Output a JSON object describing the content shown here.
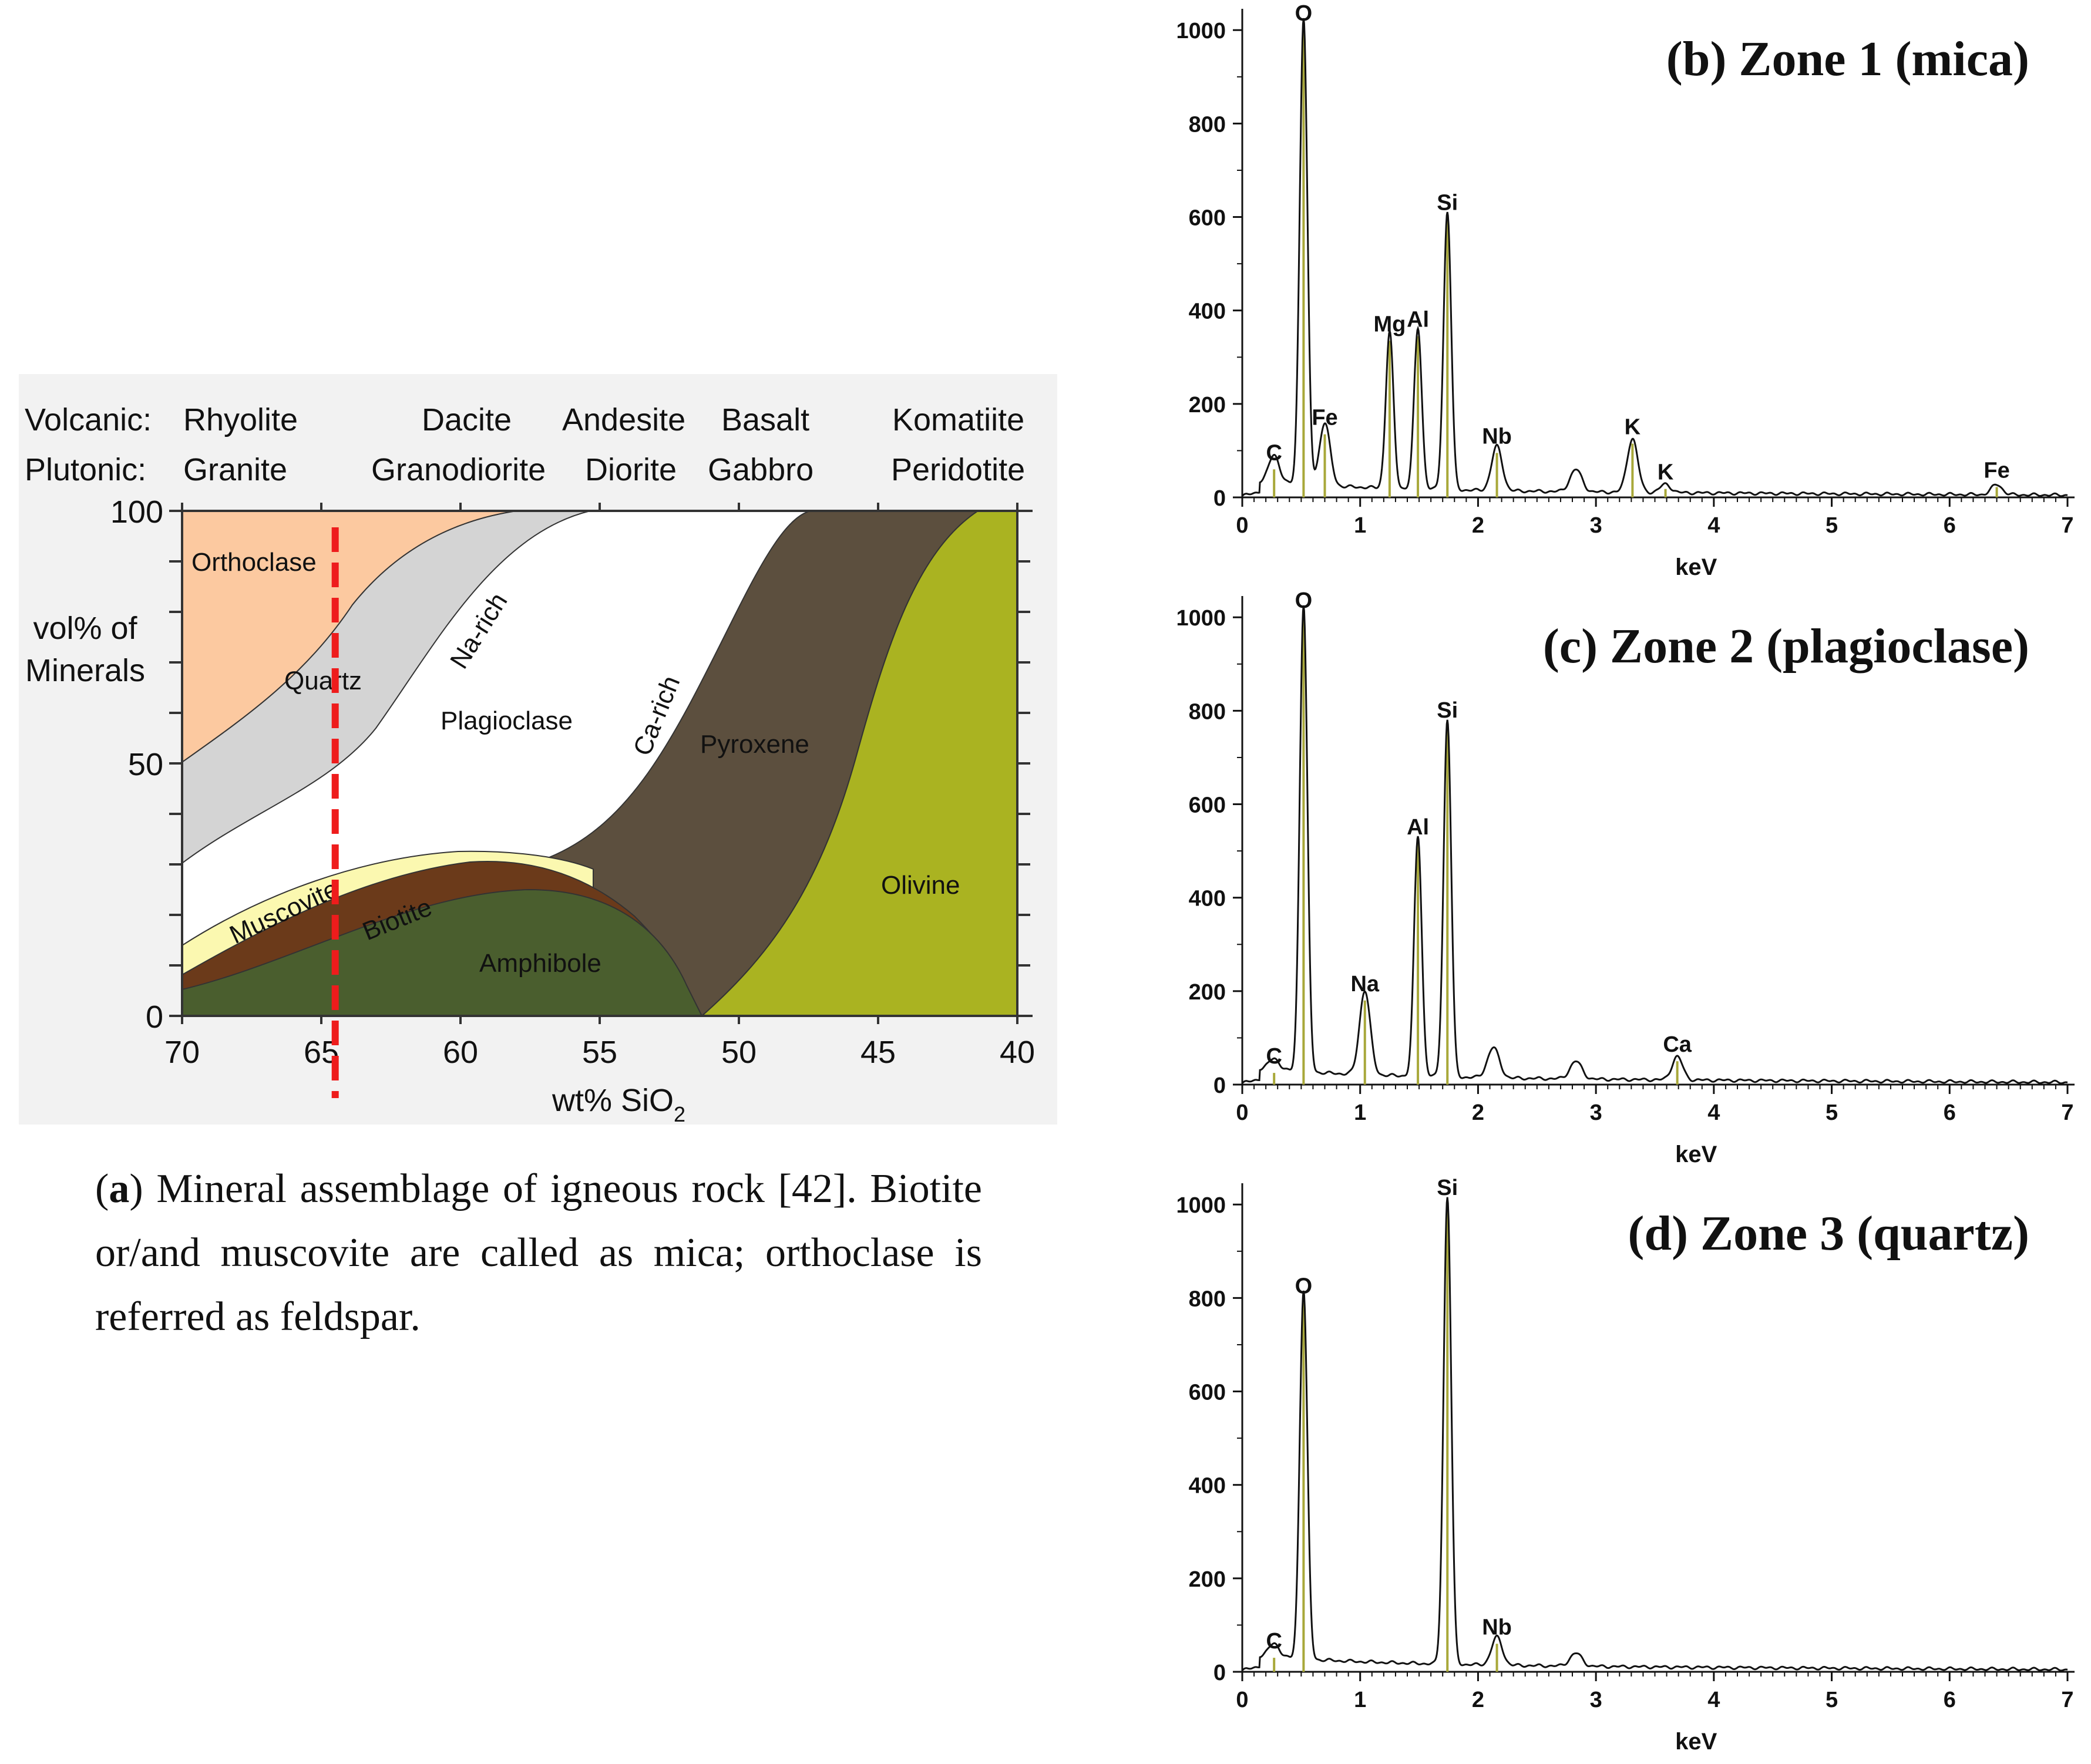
{
  "panel_a": {
    "rock_rows": {
      "volcanic_label": "Volcanic:",
      "plutonic_label": "Plutonic:",
      "volcanic": [
        "Rhyolite",
        "Dacite",
        "Andesite",
        "Basalt",
        "Komatiite"
      ],
      "plutonic": [
        "Granite",
        "Granodiorite",
        "Diorite",
        "Gabbro",
        "Peridotite"
      ]
    },
    "ylabel_line1": "vol% of",
    "ylabel_line2": "Minerals",
    "xlabel_main": "wt% SiO",
    "xlabel_sub": "2",
    "marker_sio2": 64.5,
    "colors": {
      "background": "#f2f2f2",
      "orthoclase": "#fcc9a0",
      "quartz": "#d4d4d4",
      "plagioclase": "#ffffff",
      "muscovite": "#fbf8b0",
      "biotite": "#6b3a1a",
      "amphibole": "#4a5e2e",
      "pyroxene": "#5c4f3e",
      "olivine": "#aab321",
      "marker": "#ee1c1c"
    }
  },
  "caption": {
    "letter": "a",
    "open": "(",
    "text": ") Mineral assemblage of igneous rock [42]. Biotite or/and muscovite are called as mica; orthoclase is referred as feldspar."
  },
  "chart_data": [
    {
      "panel": "a",
      "type": "area",
      "title": "",
      "xlabel": "wt% SiO2",
      "ylabel": "vol% of Minerals",
      "xlim": [
        70,
        40
      ],
      "ylim": [
        0,
        100
      ],
      "x_ticks": [
        70,
        65,
        60,
        55,
        50,
        45,
        40
      ],
      "y_ticks": [
        0,
        50,
        100
      ],
      "fields": [
        {
          "name": "Orthoclase",
          "boundary": [
            [
              70,
              50
            ],
            [
              63.5,
              73
            ],
            [
              57,
              97
            ],
            [
              56,
              100
            ]
          ]
        },
        {
          "name": "Quartz",
          "note": "between orthoclase and plagioclase boundaries",
          "lower": [
            [
              70,
              31
            ],
            [
              63,
              47
            ],
            [
              57,
              78
            ],
            [
              55,
              100
            ]
          ]
        },
        {
          "name": "Plagioclase",
          "annotations": [
            "Na-rich",
            "Ca-rich"
          ]
        },
        {
          "name": "Muscovite",
          "upper": [
            [
              70,
              14
            ],
            [
              60,
              32
            ],
            [
              55,
              31
            ]
          ]
        },
        {
          "name": "Biotite",
          "upper": [
            [
              70,
              10
            ],
            [
              59,
              28
            ],
            [
              53,
              22
            ],
            [
              51.5,
              15
            ]
          ]
        },
        {
          "name": "Amphibole",
          "upper": [
            [
              70,
              5
            ],
            [
              58,
              24
            ],
            [
              53,
              15
            ],
            [
              51.5,
              0
            ]
          ]
        },
        {
          "name": "Pyroxene",
          "upper": [
            [
              55.5,
              32
            ],
            [
              50,
              70
            ],
            [
              47,
              100
            ]
          ]
        },
        {
          "name": "Olivine",
          "upper": [
            [
              51.5,
              0
            ],
            [
              46,
              40
            ],
            [
              43,
              100
            ]
          ]
        }
      ],
      "marker_line_x": 64.5
    },
    {
      "panel": "b",
      "type": "line",
      "title": "(b) Zone 1 (mica)",
      "xlabel": "keV",
      "ylabel": "",
      "xlim": [
        0,
        7
      ],
      "ylim": [
        0,
        1000
      ],
      "x_ticks": [
        0,
        1,
        2,
        3,
        4,
        5,
        6,
        7
      ],
      "y_ticks": [
        0,
        200,
        400,
        600,
        800,
        1000
      ],
      "peaks": [
        {
          "label": "C",
          "x": 0.27,
          "y": 60
        },
        {
          "label": "O",
          "x": 0.52,
          "y": 1000
        },
        {
          "label": "Fe",
          "x": 0.7,
          "y": 135
        },
        {
          "label": "Mg",
          "x": 1.25,
          "y": 335
        },
        {
          "label": "Al",
          "x": 1.49,
          "y": 345
        },
        {
          "label": "Si",
          "x": 1.74,
          "y": 595
        },
        {
          "label": "Nb",
          "x": 2.16,
          "y": 95
        },
        {
          "label": "K",
          "x": 3.31,
          "y": 115
        },
        {
          "label": "K",
          "x": 3.59,
          "y": 18
        },
        {
          "label": "Fe",
          "x": 6.4,
          "y": 22
        }
      ],
      "minor_bumps": [
        [
          2.83,
          48
        ]
      ]
    },
    {
      "panel": "c",
      "type": "line",
      "title": "(c) Zone 2 (plagioclase)",
      "xlabel": "keV",
      "ylabel": "",
      "xlim": [
        0,
        7
      ],
      "ylim": [
        0,
        1000
      ],
      "x_ticks": [
        0,
        1,
        2,
        3,
        4,
        5,
        6,
        7
      ],
      "y_ticks": [
        0,
        200,
        400,
        600,
        800,
        1000
      ],
      "peaks": [
        {
          "label": "C",
          "x": 0.27,
          "y": 25
        },
        {
          "label": "O",
          "x": 0.52,
          "y": 1000
        },
        {
          "label": "Na",
          "x": 1.04,
          "y": 180
        },
        {
          "label": "Al",
          "x": 1.49,
          "y": 515
        },
        {
          "label": "Si",
          "x": 1.74,
          "y": 765
        },
        {
          "label": "Ca",
          "x": 3.69,
          "y": 50
        }
      ],
      "minor_bumps": [
        [
          2.13,
          65
        ],
        [
          2.83,
          38
        ]
      ]
    },
    {
      "panel": "d",
      "type": "line",
      "title": "(d) Zone 3 (quartz)",
      "xlabel": "keV",
      "ylabel": "",
      "xlim": [
        0,
        7
      ],
      "ylim": [
        0,
        1000
      ],
      "x_ticks": [
        0,
        1,
        2,
        3,
        4,
        5,
        6,
        7
      ],
      "y_ticks": [
        0,
        200,
        400,
        600,
        800,
        1000
      ],
      "peaks": [
        {
          "label": "C",
          "x": 0.27,
          "y": 30
        },
        {
          "label": "O",
          "x": 0.52,
          "y": 790
        },
        {
          "label": "Si",
          "x": 1.74,
          "y": 1000
        },
        {
          "label": "Nb",
          "x": 2.16,
          "y": 60
        }
      ],
      "minor_bumps": [
        [
          2.83,
          28
        ]
      ]
    }
  ]
}
